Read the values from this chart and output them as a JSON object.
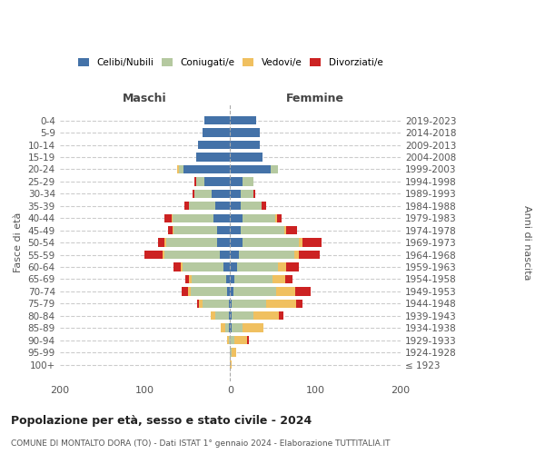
{
  "age_groups": [
    "100+",
    "95-99",
    "90-94",
    "85-89",
    "80-84",
    "75-79",
    "70-74",
    "65-69",
    "60-64",
    "55-59",
    "50-54",
    "45-49",
    "40-44",
    "35-39",
    "30-34",
    "25-29",
    "20-24",
    "15-19",
    "10-14",
    "5-9",
    "0-4"
  ],
  "birth_years": [
    "≤ 1923",
    "1924-1928",
    "1929-1933",
    "1934-1938",
    "1939-1943",
    "1944-1948",
    "1949-1953",
    "1954-1958",
    "1959-1963",
    "1964-1968",
    "1969-1973",
    "1974-1978",
    "1979-1983",
    "1984-1988",
    "1989-1993",
    "1994-1998",
    "1999-2003",
    "2004-2008",
    "2009-2013",
    "2014-2018",
    "2019-2023"
  ],
  "maschi": {
    "celibi": [
      0,
      0,
      0,
      1,
      2,
      2,
      4,
      5,
      8,
      12,
      15,
      15,
      20,
      18,
      22,
      30,
      55,
      40,
      38,
      32,
      30
    ],
    "coniugati": [
      0,
      0,
      2,
      5,
      15,
      30,
      42,
      40,
      48,
      65,
      60,
      52,
      48,
      30,
      20,
      10,
      5,
      0,
      0,
      0,
      0
    ],
    "vedovi": [
      0,
      0,
      2,
      5,
      6,
      5,
      3,
      3,
      2,
      2,
      2,
      1,
      1,
      0,
      0,
      0,
      2,
      0,
      0,
      0,
      0
    ],
    "divorziati": [
      0,
      0,
      0,
      0,
      0,
      2,
      8,
      5,
      8,
      22,
      8,
      5,
      8,
      6,
      2,
      2,
      0,
      0,
      0,
      0,
      0
    ]
  },
  "femmine": {
    "nubili": [
      0,
      0,
      0,
      2,
      2,
      2,
      4,
      5,
      8,
      10,
      15,
      12,
      15,
      12,
      12,
      15,
      48,
      38,
      35,
      35,
      30
    ],
    "coniugate": [
      0,
      2,
      5,
      12,
      25,
      40,
      50,
      45,
      48,
      65,
      65,
      52,
      38,
      25,
      15,
      12,
      8,
      0,
      0,
      0,
      0
    ],
    "vedove": [
      2,
      5,
      15,
      25,
      30,
      35,
      22,
      15,
      10,
      5,
      5,
      2,
      2,
      0,
      0,
      0,
      0,
      0,
      0,
      0,
      0
    ],
    "divorziate": [
      0,
      0,
      2,
      0,
      5,
      8,
      18,
      8,
      15,
      25,
      22,
      12,
      5,
      5,
      2,
      0,
      0,
      0,
      0,
      0,
      0
    ]
  },
  "colors": {
    "celibi": "#4472a8",
    "coniugati": "#b5c9a0",
    "vedovi": "#f0c060",
    "divorziati": "#cc2222"
  },
  "legend_labels": [
    "Celibi/Nubili",
    "Coniugati/e",
    "Vedovi/e",
    "Divorziati/e"
  ],
  "title": "Popolazione per età, sesso e stato civile - 2024",
  "subtitle": "COMUNE DI MONTALTO DORA (TO) - Dati ISTAT 1° gennaio 2024 - Elaborazione TUTTITALIA.IT",
  "xlabel_left": "Maschi",
  "xlabel_right": "Femmine",
  "ylabel_left": "Fasce di età",
  "ylabel_right": "Anni di nascita",
  "xlim": 200,
  "background_color": "#ffffff",
  "grid_color": "#cccccc"
}
